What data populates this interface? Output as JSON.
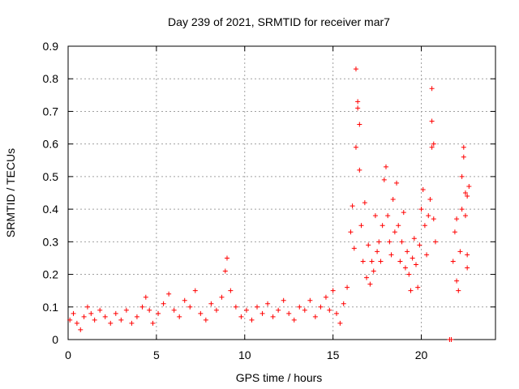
{
  "chart_data": {
    "type": "scatter",
    "title": "Day 239 of 2021, SRMTID for receiver mar7",
    "xlabel": "GPS time / hours",
    "ylabel": "SRMTID / TECUs",
    "xlim": [
      0,
      24.2
    ],
    "ylim": [
      0,
      0.9
    ],
    "x_ticks": [
      0,
      5,
      10,
      15,
      20
    ],
    "y_ticks": [
      0,
      0.1,
      0.2,
      0.3,
      0.4,
      0.5,
      0.6,
      0.7,
      0.8,
      0.9
    ],
    "x_tick_labels": [
      "0",
      "5",
      "10",
      "15",
      "20"
    ],
    "y_tick_labels": [
      "0",
      "0.1",
      "0.2",
      "0.3",
      "0.4",
      "0.5",
      "0.6",
      "0.7",
      "0.8",
      "0.9"
    ],
    "grid": true,
    "marker": "+",
    "color": "#ff0000",
    "series": [
      {
        "name": "SRMTID",
        "points": [
          [
            0.1,
            0.06
          ],
          [
            0.3,
            0.08
          ],
          [
            0.5,
            0.05
          ],
          [
            0.7,
            0.03
          ],
          [
            0.9,
            0.07
          ],
          [
            1.1,
            0.1
          ],
          [
            1.3,
            0.08
          ],
          [
            1.5,
            0.06
          ],
          [
            1.8,
            0.09
          ],
          [
            2.1,
            0.07
          ],
          [
            2.4,
            0.05
          ],
          [
            2.7,
            0.08
          ],
          [
            3.0,
            0.06
          ],
          [
            3.3,
            0.09
          ],
          [
            3.6,
            0.05
          ],
          [
            3.9,
            0.07
          ],
          [
            4.2,
            0.1
          ],
          [
            4.4,
            0.13
          ],
          [
            4.6,
            0.09
          ],
          [
            4.8,
            0.05
          ],
          [
            5.1,
            0.08
          ],
          [
            5.4,
            0.11
          ],
          [
            5.7,
            0.14
          ],
          [
            6.0,
            0.09
          ],
          [
            6.3,
            0.07
          ],
          [
            6.6,
            0.12
          ],
          [
            6.9,
            0.1
          ],
          [
            7.2,
            0.15
          ],
          [
            7.5,
            0.08
          ],
          [
            7.8,
            0.06
          ],
          [
            8.1,
            0.11
          ],
          [
            8.4,
            0.09
          ],
          [
            8.7,
            0.13
          ],
          [
            8.9,
            0.21
          ],
          [
            9.0,
            0.25
          ],
          [
            9.2,
            0.15
          ],
          [
            9.5,
            0.1
          ],
          [
            9.8,
            0.07
          ],
          [
            10.1,
            0.09
          ],
          [
            10.4,
            0.06
          ],
          [
            10.7,
            0.1
          ],
          [
            11.0,
            0.08
          ],
          [
            11.3,
            0.11
          ],
          [
            11.6,
            0.07
          ],
          [
            11.9,
            0.09
          ],
          [
            12.2,
            0.12
          ],
          [
            12.5,
            0.08
          ],
          [
            12.8,
            0.06
          ],
          [
            13.1,
            0.1
          ],
          [
            13.4,
            0.09
          ],
          [
            13.7,
            0.12
          ],
          [
            14.0,
            0.07
          ],
          [
            14.3,
            0.1
          ],
          [
            14.6,
            0.13
          ],
          [
            14.8,
            0.09
          ],
          [
            15.0,
            0.15
          ],
          [
            15.2,
            0.08
          ],
          [
            15.4,
            0.05
          ],
          [
            15.6,
            0.11
          ],
          [
            15.8,
            0.16
          ],
          [
            16.0,
            0.33
          ],
          [
            16.1,
            0.41
          ],
          [
            16.2,
            0.28
          ],
          [
            16.3,
            0.59
          ],
          [
            16.3,
            0.83
          ],
          [
            16.4,
            0.73
          ],
          [
            16.4,
            0.71
          ],
          [
            16.5,
            0.52
          ],
          [
            16.5,
            0.66
          ],
          [
            16.6,
            0.35
          ],
          [
            16.7,
            0.24
          ],
          [
            16.8,
            0.42
          ],
          [
            16.9,
            0.19
          ],
          [
            17.0,
            0.29
          ],
          [
            17.1,
            0.17
          ],
          [
            17.2,
            0.24
          ],
          [
            17.3,
            0.21
          ],
          [
            17.4,
            0.38
          ],
          [
            17.5,
            0.27
          ],
          [
            17.6,
            0.3
          ],
          [
            17.7,
            0.24
          ],
          [
            17.8,
            0.35
          ],
          [
            17.9,
            0.49
          ],
          [
            18.0,
            0.53
          ],
          [
            18.1,
            0.38
          ],
          [
            18.2,
            0.3
          ],
          [
            18.3,
            0.26
          ],
          [
            18.4,
            0.43
          ],
          [
            18.5,
            0.33
          ],
          [
            18.6,
            0.48
          ],
          [
            18.7,
            0.35
          ],
          [
            18.8,
            0.24
          ],
          [
            18.9,
            0.3
          ],
          [
            19.0,
            0.39
          ],
          [
            19.1,
            0.22
          ],
          [
            19.2,
            0.27
          ],
          [
            19.3,
            0.2
          ],
          [
            19.4,
            0.15
          ],
          [
            19.5,
            0.25
          ],
          [
            19.6,
            0.31
          ],
          [
            19.7,
            0.23
          ],
          [
            19.8,
            0.16
          ],
          [
            19.9,
            0.29
          ],
          [
            20.0,
            0.4
          ],
          [
            20.1,
            0.46
          ],
          [
            20.2,
            0.35
          ],
          [
            20.3,
            0.26
          ],
          [
            20.4,
            0.38
          ],
          [
            20.5,
            0.43
          ],
          [
            20.6,
            0.59
          ],
          [
            20.6,
            0.67
          ],
          [
            20.6,
            0.77
          ],
          [
            20.7,
            0.6
          ],
          [
            20.7,
            0.37
          ],
          [
            20.8,
            0.3
          ],
          [
            21.6,
            0.0
          ],
          [
            21.7,
            0.0
          ],
          [
            21.8,
            0.24
          ],
          [
            21.9,
            0.33
          ],
          [
            22.0,
            0.37
          ],
          [
            22.0,
            0.18
          ],
          [
            22.1,
            0.15
          ],
          [
            22.2,
            0.27
          ],
          [
            22.3,
            0.4
          ],
          [
            22.3,
            0.5
          ],
          [
            22.4,
            0.56
          ],
          [
            22.4,
            0.59
          ],
          [
            22.5,
            0.45
          ],
          [
            22.5,
            0.38
          ],
          [
            22.6,
            0.26
          ],
          [
            22.6,
            0.44
          ],
          [
            22.7,
            0.47
          ],
          [
            22.6,
            0.22
          ]
        ]
      }
    ]
  }
}
